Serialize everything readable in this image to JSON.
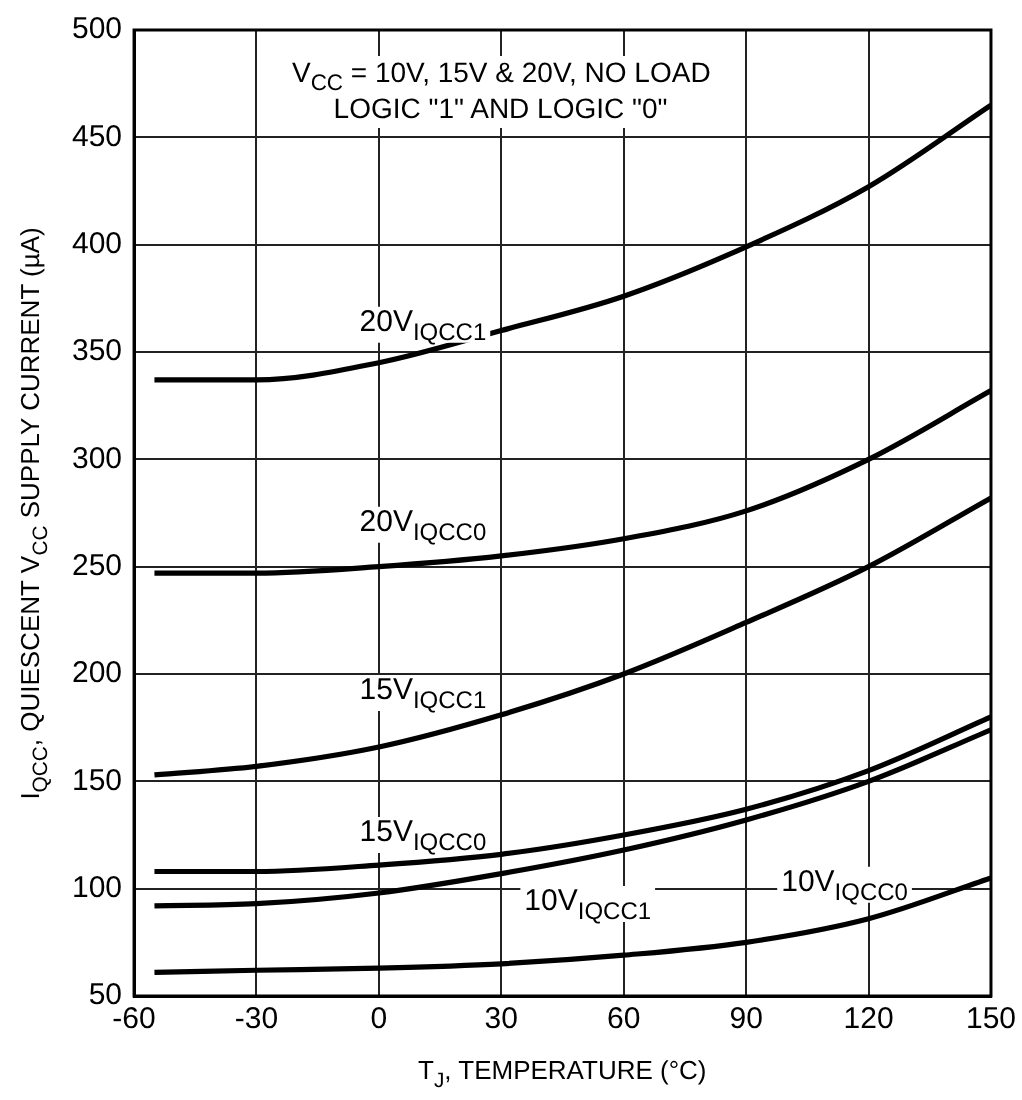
{
  "chart_data": {
    "type": "line",
    "xlabel": "T$_{J}$, TEMPERATURE (°C)",
    "ylabel": "I$_{QCC}$, QUIESCENT V$_{CC}$ SUPPLY CURRENT (µA)",
    "x": [
      -55,
      -30,
      0,
      30,
      60,
      90,
      120,
      150
    ],
    "series": [
      {
        "name": "20V$_{IQCC1}$",
        "color": "#000000",
        "values": [
          337,
          337,
          345,
          360,
          376,
          399,
          427,
          465
        ]
      },
      {
        "name": "20V$_{IQCC0}$",
        "color": "#000000",
        "values": [
          247,
          247,
          250,
          255,
          263,
          276,
          300,
          332
        ]
      },
      {
        "name": "15V$_{IQCC1}$",
        "color": "#000000",
        "values": [
          153,
          157,
          166,
          181,
          200,
          224,
          250,
          282
        ]
      },
      {
        "name": "15V$_{IQCC0}$",
        "color": "#000000",
        "values": [
          108,
          108,
          111,
          116,
          125,
          137,
          155,
          180
        ]
      },
      {
        "name": "10V$_{IQCC1}$",
        "color": "#000000",
        "values": [
          92,
          93,
          98,
          107,
          118,
          132,
          150,
          174
        ]
      },
      {
        "name": "10V$_{IQCC0}$",
        "color": "#000000",
        "values": [
          61,
          62,
          63,
          65,
          69,
          75,
          86,
          105
        ]
      }
    ],
    "xlim": [
      -60,
      150
    ],
    "xticks": [
      -60,
      -30,
      0,
      30,
      60,
      90,
      120,
      150
    ],
    "ylim": [
      50,
      500
    ],
    "yticks": [
      50,
      100,
      150,
      200,
      250,
      300,
      350,
      400,
      450,
      500
    ],
    "grid": true,
    "marker": "none",
    "line_style": "solid",
    "legend": false,
    "annotations": [
      "V$_{CC}$ = 10V, 15V & 20V, NO LOAD",
      "LOGIC \"1\" AND LOGIC \"0\""
    ]
  }
}
